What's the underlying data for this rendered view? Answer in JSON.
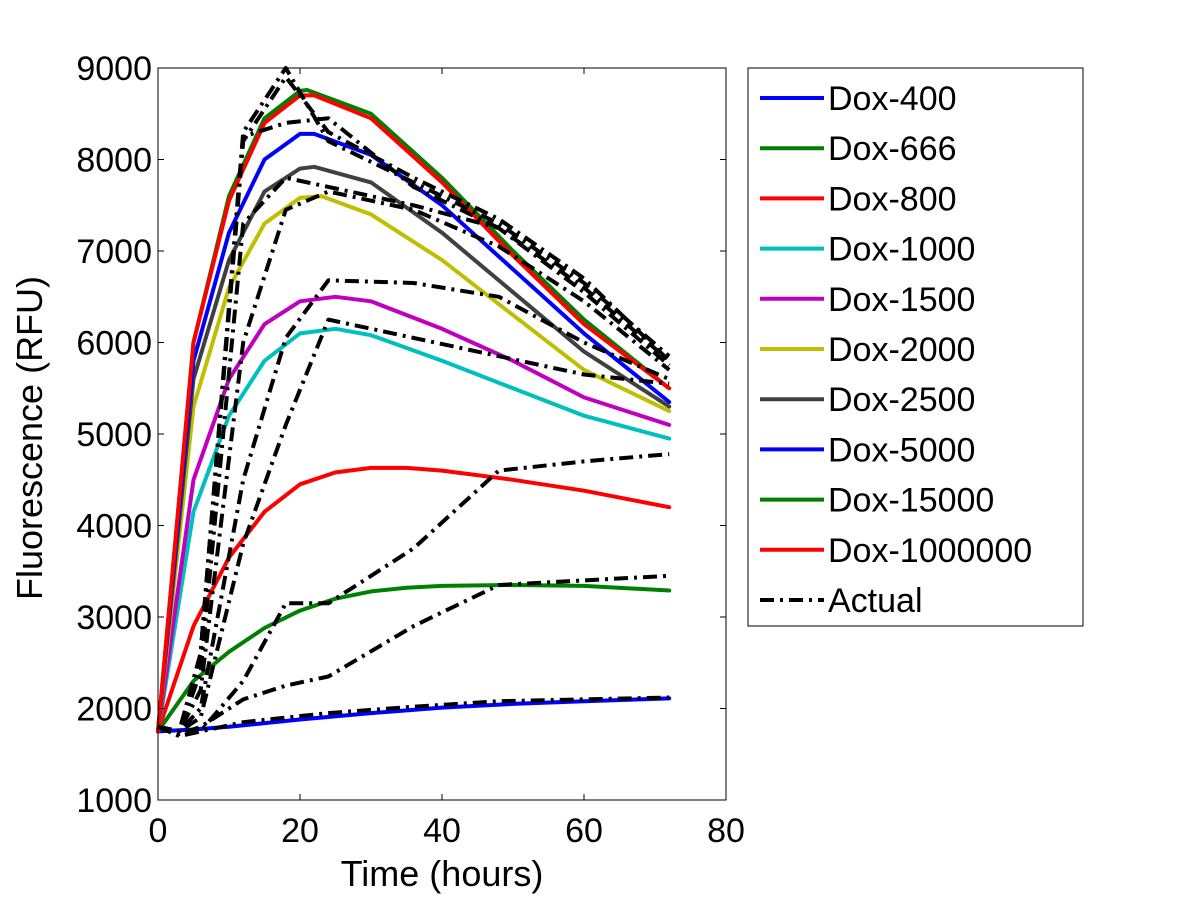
{
  "chart_data": {
    "type": "line",
    "title": "",
    "xlabel": "Time (hours)",
    "ylabel": "Fluorescence (RFU)",
    "xlim": [
      0,
      80
    ],
    "ylim": [
      1000,
      9000
    ],
    "xticks": [
      0,
      20,
      40,
      60,
      80
    ],
    "xtick_labels": [
      "0",
      "20",
      "40",
      "60",
      "80"
    ],
    "yticks": [
      1000,
      2000,
      3000,
      4000,
      5000,
      6000,
      7000,
      8000,
      9000
    ],
    "ytick_labels": [
      "1000",
      "2000",
      "3000",
      "4000",
      "5000",
      "6000",
      "7000",
      "8000",
      "9000"
    ],
    "grid": false,
    "legend_position": "outside-right",
    "series": [
      {
        "name": "Dox-400",
        "color": "#0000ff",
        "style": "solid",
        "x": [
          0,
          5,
          10,
          20,
          30,
          40,
          50,
          60,
          72
        ],
        "y": [
          1750,
          1770,
          1800,
          1880,
          1950,
          2010,
          2050,
          2080,
          2110
        ]
      },
      {
        "name": "Dox-666",
        "color": "#008000",
        "style": "solid",
        "x": [
          0,
          5,
          10,
          15,
          20,
          25,
          30,
          35,
          40,
          50,
          60,
          72
        ],
        "y": [
          1750,
          2300,
          2620,
          2880,
          3070,
          3200,
          3280,
          3320,
          3340,
          3350,
          3340,
          3290
        ]
      },
      {
        "name": "Dox-800",
        "color": "#ff0000",
        "style": "solid",
        "x": [
          0,
          5,
          10,
          15,
          20,
          25,
          30,
          35,
          40,
          50,
          60,
          72
        ],
        "y": [
          1750,
          2900,
          3650,
          4150,
          4450,
          4580,
          4630,
          4630,
          4600,
          4500,
          4380,
          4200
        ]
      },
      {
        "name": "Dox-1000",
        "color": "#00bfbf",
        "style": "solid",
        "x": [
          0,
          5,
          10,
          15,
          20,
          25,
          30,
          40,
          50,
          60,
          72
        ],
        "y": [
          1750,
          4150,
          5200,
          5800,
          6100,
          6150,
          6080,
          5800,
          5500,
          5200,
          4950
        ]
      },
      {
        "name": "Dox-1500",
        "color": "#bf00bf",
        "style": "solid",
        "x": [
          0,
          5,
          10,
          15,
          20,
          25,
          30,
          40,
          50,
          60,
          72
        ],
        "y": [
          1750,
          4500,
          5600,
          6200,
          6450,
          6500,
          6450,
          6150,
          5800,
          5400,
          5100
        ]
      },
      {
        "name": "Dox-2000",
        "color": "#bfbf00",
        "style": "solid",
        "x": [
          0,
          5,
          10,
          15,
          20,
          23,
          30,
          40,
          50,
          60,
          72
        ],
        "y": [
          1750,
          5300,
          6600,
          7300,
          7580,
          7600,
          7400,
          6900,
          6300,
          5700,
          5250
        ]
      },
      {
        "name": "Dox-2500",
        "color": "#404040",
        "style": "solid",
        "x": [
          0,
          5,
          10,
          15,
          20,
          22,
          30,
          40,
          50,
          60,
          72
        ],
        "y": [
          1750,
          5600,
          6900,
          7650,
          7900,
          7920,
          7750,
          7200,
          6550,
          5900,
          5300
        ]
      },
      {
        "name": "Dox-5000",
        "color": "#0000ff",
        "style": "solid",
        "x": [
          0,
          5,
          10,
          15,
          20,
          22,
          30,
          40,
          50,
          60,
          72
        ],
        "y": [
          1750,
          5800,
          7200,
          8000,
          8280,
          8280,
          8050,
          7500,
          6800,
          6100,
          5350
        ]
      },
      {
        "name": "Dox-15000",
        "color": "#008000",
        "style": "solid",
        "x": [
          0,
          5,
          10,
          15,
          20,
          21,
          30,
          40,
          50,
          60,
          72
        ],
        "y": [
          1750,
          6000,
          7600,
          8450,
          8750,
          8760,
          8500,
          7800,
          7000,
          6250,
          5500
        ]
      },
      {
        "name": "Dox-1000000",
        "color": "#ff0000",
        "style": "solid",
        "x": [
          0,
          5,
          10,
          15,
          20,
          22,
          30,
          40,
          50,
          60,
          72
        ],
        "y": [
          1750,
          6000,
          7550,
          8400,
          8700,
          8700,
          8450,
          7750,
          6950,
          6200,
          5500
        ]
      },
      {
        "name": "Actual",
        "color": "#000000",
        "style": "dashdot",
        "lines": [
          {
            "x": [
              0,
              3,
              6,
              12,
              18,
              24,
              36,
              48,
              60,
              72
            ],
            "y": [
              1800,
              1700,
              1750,
              1850,
              1900,
              1950,
              2020,
              2080,
              2100,
              2120
            ]
          },
          {
            "x": [
              0,
              3,
              6,
              12,
              18,
              24,
              36,
              48,
              60,
              72
            ],
            "y": [
              1800,
              1720,
              1800,
              2100,
              2250,
              2350,
              2900,
              3350,
              3400,
              3450
            ]
          },
          {
            "x": [
              0,
              3,
              6,
              12,
              18,
              24,
              36,
              48,
              60,
              72
            ],
            "y": [
              1800,
              1700,
              1750,
              2300,
              3150,
              3150,
              3750,
              4600,
              4700,
              4780
            ]
          },
          {
            "x": [
              0,
              3,
              6,
              12,
              18,
              24,
              36,
              48,
              60,
              72
            ],
            "y": [
              1800,
              1750,
              1900,
              3800,
              5100,
              6250,
              6050,
              5850,
              5650,
              5550
            ]
          },
          {
            "x": [
              0,
              3,
              6,
              12,
              18,
              24,
              36,
              48,
              60,
              72
            ],
            "y": [
              1800,
              1750,
              2000,
              4500,
              6050,
              6680,
              6650,
              6500,
              6000,
              5600
            ]
          },
          {
            "x": [
              0,
              3,
              6,
              12,
              18,
              24,
              36,
              48,
              60,
              72
            ],
            "y": [
              1800,
              1750,
              2200,
              6000,
              7450,
              7650,
              7450,
              7050,
              6450,
              5700
            ]
          },
          {
            "x": [
              0,
              3,
              6,
              12,
              18,
              24,
              36,
              48,
              60,
              72
            ],
            "y": [
              1800,
              1750,
              2400,
              7300,
              7800,
              7700,
              7500,
              7250,
              6550,
              5750
            ]
          },
          {
            "x": [
              0,
              3,
              6,
              12,
              18,
              24,
              36,
              48,
              60,
              72
            ],
            "y": [
              1800,
              1750,
              2600,
              8250,
              8400,
              8450,
              7700,
              7250,
              6600,
              5800
            ]
          },
          {
            "x": [
              0,
              3,
              6,
              12,
              18,
              24,
              36,
              48,
              60,
              72
            ],
            "y": [
              1800,
              1750,
              2600,
              8300,
              9000,
              8200,
              7750,
              7300,
              6650,
              5850
            ]
          },
          {
            "x": [
              0,
              3,
              6,
              12,
              18,
              24,
              36,
              48,
              60,
              72
            ],
            "y": [
              1800,
              1750,
              2600,
              8200,
              8900,
              8300,
              7800,
              7350,
              6700,
              5800
            ]
          }
        ]
      }
    ]
  }
}
